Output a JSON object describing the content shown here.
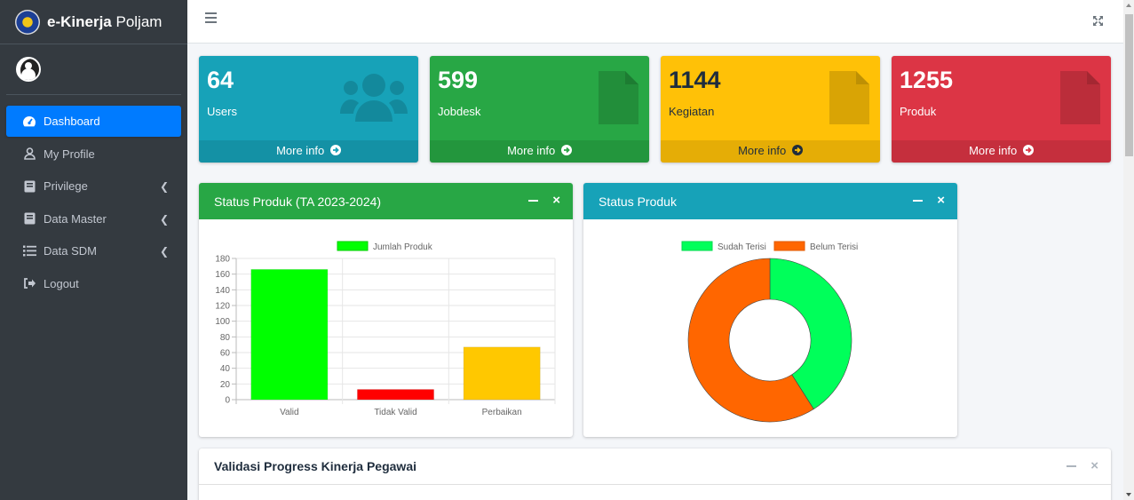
{
  "brand": {
    "bold": "e-Kinerja",
    "light": "Poljam"
  },
  "sidebar": {
    "items": [
      {
        "label": "Dashboard",
        "icon": "tachometer-icon",
        "active": true
      },
      {
        "label": "My Profile",
        "icon": "user-icon"
      },
      {
        "label": "Privilege",
        "icon": "book-icon",
        "chevron": true
      },
      {
        "label": "Data Master",
        "icon": "book-icon",
        "chevron": true
      },
      {
        "label": "Data SDM",
        "icon": "list-icon",
        "chevron": true
      },
      {
        "label": "Logout",
        "icon": "sign-out-icon"
      }
    ]
  },
  "stats": [
    {
      "value": "64",
      "label": "Users",
      "more": "More info",
      "color": "#17a2b8",
      "icon": "users-icon"
    },
    {
      "value": "599",
      "label": "Jobdesk",
      "more": "More info",
      "color": "#28a745",
      "icon": "file-icon"
    },
    {
      "value": "1144",
      "label": "Kegiatan",
      "more": "More info",
      "color": "#ffc107",
      "icon": "file-icon"
    },
    {
      "value": "1255",
      "label": "Produk",
      "more": "More info",
      "color": "#dc3545",
      "icon": "file-icon"
    }
  ],
  "cards": {
    "bar_title": "Status Produk (TA 2023-2024)",
    "doughnut_title": "Status Produk",
    "progress_title": "Validasi Progress Kinerja Pegawai"
  },
  "chart_data": [
    {
      "type": "bar",
      "title": "",
      "categories": [
        "Valid",
        "Tidak Valid",
        "Perbaikan"
      ],
      "series": [
        {
          "name": "Jumlah Produk",
          "values": [
            166,
            13,
            67
          ]
        }
      ],
      "colors": [
        "#00ff00",
        "#ff0000",
        "#ffc800"
      ],
      "ylim": [
        0,
        180
      ],
      "yticks": [
        0,
        20,
        40,
        60,
        80,
        100,
        120,
        140,
        160,
        180
      ],
      "grid": true,
      "legend": "top"
    },
    {
      "type": "pie",
      "title": "",
      "labels": [
        "Sudah Terisi",
        "Belum Terisi"
      ],
      "values": [
        41,
        59
      ],
      "colors": [
        "#00ff5a",
        "#ff6600"
      ],
      "doughnut": true,
      "legend": "top"
    }
  ]
}
